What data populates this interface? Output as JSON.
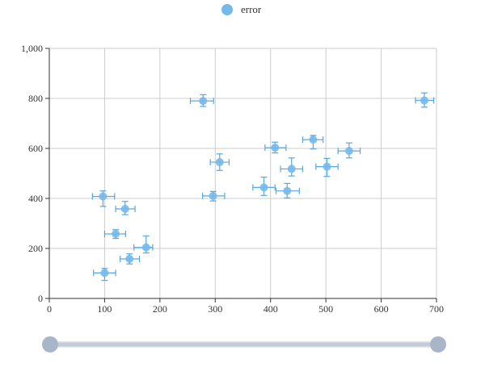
{
  "colors": {
    "series": "#74b9ec",
    "series_stroke": "#5aa6df",
    "grid": "#cccccc",
    "axis": "#333333",
    "slider_handle": "#a9b6c8",
    "slider_track": "#c4ccd8"
  },
  "legend": {
    "icon": "circle-icon",
    "label": "error"
  },
  "chart_data": {
    "type": "scatter",
    "title": "",
    "xlabel": "",
    "ylabel": "",
    "xlim": [
      0,
      700
    ],
    "ylim": [
      0,
      1000
    ],
    "x_ticks": [
      0,
      100,
      200,
      300,
      400,
      500,
      600,
      700
    ],
    "y_ticks": [
      0,
      200,
      400,
      600,
      800,
      1000
    ],
    "x_tick_labels": [
      "0",
      "100",
      "200",
      "300",
      "400",
      "500",
      "600",
      "700"
    ],
    "y_tick_labels": [
      "0",
      "200",
      "400",
      "600",
      "800",
      "1,000"
    ],
    "grid": true,
    "legend_position": "top-center",
    "series": [
      {
        "name": "error",
        "points": [
          {
            "x": 100,
            "y": 102,
            "x_err": [
              80,
              120
            ],
            "y_err": [
              72,
              120
            ]
          },
          {
            "x": 145,
            "y": 158,
            "x_err": [
              128,
              163
            ],
            "y_err": [
              138,
              178
            ]
          },
          {
            "x": 175,
            "y": 204,
            "x_err": [
              153,
              187
            ],
            "y_err": [
              182,
              250
            ]
          },
          {
            "x": 120,
            "y": 258,
            "x_err": [
              100,
              138
            ],
            "y_err": [
              240,
              275
            ]
          },
          {
            "x": 137,
            "y": 358,
            "x_err": [
              120,
              155
            ],
            "y_err": [
              335,
              388
            ]
          },
          {
            "x": 97,
            "y": 408,
            "x_err": [
              78,
              118
            ],
            "y_err": [
              368,
              430
            ]
          },
          {
            "x": 296,
            "y": 410,
            "x_err": [
              277,
              317
            ],
            "y_err": [
              390,
              428
            ]
          },
          {
            "x": 308,
            "y": 545,
            "x_err": [
              291,
              325
            ],
            "y_err": [
              512,
              578
            ]
          },
          {
            "x": 278,
            "y": 790,
            "x_err": [
              255,
              297
            ],
            "y_err": [
              768,
              815
            ]
          },
          {
            "x": 388,
            "y": 444,
            "x_err": [
              368,
              408
            ],
            "y_err": [
              412,
              485
            ]
          },
          {
            "x": 430,
            "y": 430,
            "x_err": [
              410,
              452
            ],
            "y_err": [
              402,
              460
            ]
          },
          {
            "x": 438,
            "y": 518,
            "x_err": [
              418,
              458
            ],
            "y_err": [
              490,
              562
            ]
          },
          {
            "x": 408,
            "y": 603,
            "x_err": [
              390,
              428
            ],
            "y_err": [
              582,
              625
            ]
          },
          {
            "x": 477,
            "y": 635,
            "x_err": [
              458,
              495
            ],
            "y_err": [
              598,
              652
            ]
          },
          {
            "x": 502,
            "y": 527,
            "x_err": [
              482,
              522
            ],
            "y_err": [
              488,
              560
            ]
          },
          {
            "x": 542,
            "y": 590,
            "x_err": [
              522,
              562
            ],
            "y_err": [
              562,
              622
            ]
          },
          {
            "x": 678,
            "y": 792,
            "x_err": [
              662,
              695
            ],
            "y_err": [
              765,
              822
            ]
          }
        ]
      }
    ]
  },
  "data_zoom": {
    "start": 0,
    "end": 1
  }
}
